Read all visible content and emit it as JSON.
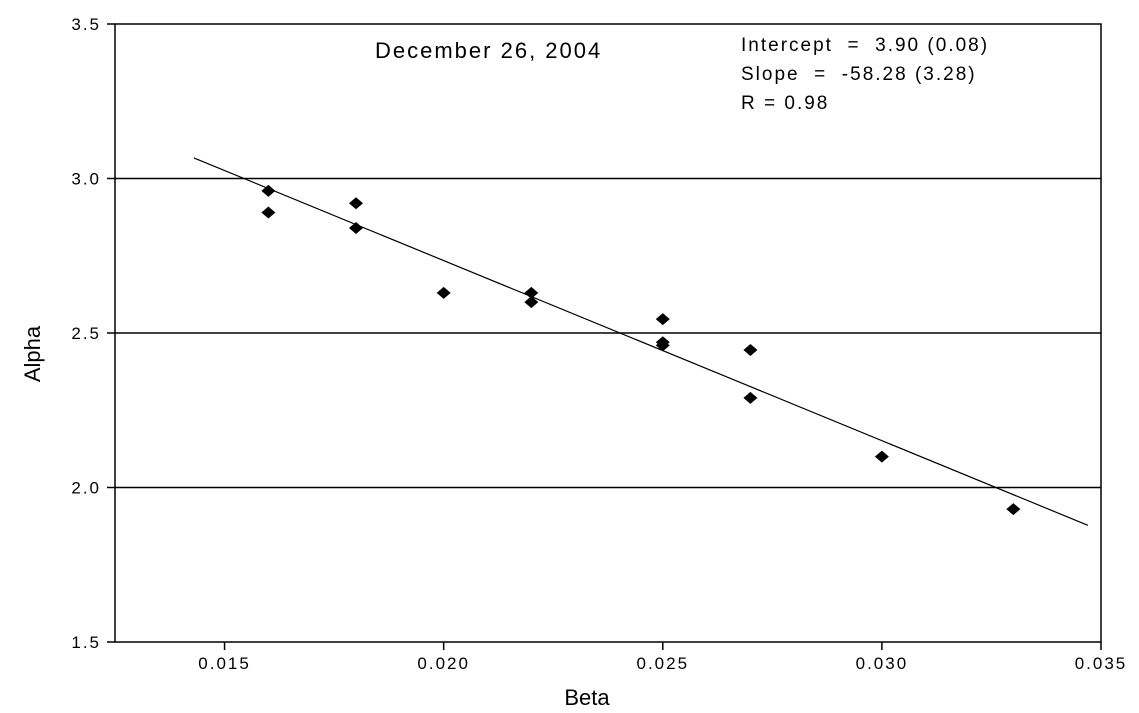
{
  "chart_data": {
    "type": "scatter",
    "title": "December 26, 2004",
    "xlabel": "Beta",
    "ylabel": "Alpha",
    "xlim": [
      0.0125,
      0.035
    ],
    "ylim": [
      1.5,
      3.5
    ],
    "x_ticks": [
      0.015,
      0.02,
      0.025,
      0.03,
      0.035
    ],
    "x_tick_labels": [
      "0.015",
      "0.020",
      "0.025",
      "0.030",
      "0.035"
    ],
    "y_ticks": [
      1.5,
      2.0,
      2.5,
      3.0,
      3.5
    ],
    "y_tick_labels": [
      "1.5",
      "2.0",
      "2.5",
      "3.0",
      "3.5"
    ],
    "horizontal_gridlines": [
      2.0,
      2.5,
      3.0
    ],
    "annotations": [
      "Intercept  =  3.90 (0.08)",
      "Slope  =  -58.28 (3.28)",
      "R = 0.98"
    ],
    "fit_line": {
      "intercept": 3.9,
      "slope": -58.28,
      "x_range": [
        0.0143,
        0.0347
      ]
    },
    "series": [
      {
        "marker": "diamond",
        "x": [
          0.016,
          0.016,
          0.018,
          0.018,
          0.02,
          0.022,
          0.022,
          0.025,
          0.025,
          0.025,
          0.027,
          0.027,
          0.03,
          0.033
        ],
        "y": [
          2.96,
          2.89,
          2.92,
          2.84,
          2.63,
          2.63,
          2.6,
          2.545,
          2.47,
          2.46,
          2.445,
          2.29,
          2.1,
          1.93
        ]
      }
    ]
  }
}
